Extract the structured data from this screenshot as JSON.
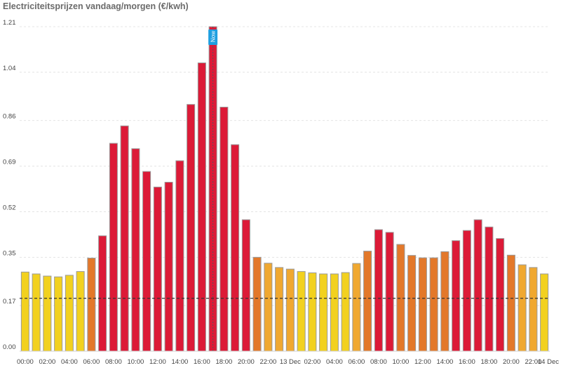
{
  "chart_data": {
    "type": "bar",
    "title": "Electriciteitsprijzen vandaag/morgen (€/kwh)",
    "xlabel": "",
    "ylabel": "",
    "ylim": [
      0,
      1.21
    ],
    "y_ticks": [
      "0.00",
      "0.17",
      "0.35",
      "0.52",
      "0.69",
      "0.86",
      "1.04",
      "1.21"
    ],
    "x_tick_labels": [
      "00:00",
      "02:00",
      "04:00",
      "06:00",
      "08:00",
      "10:00",
      "12:00",
      "14:00",
      "16:00",
      "18:00",
      "20:00",
      "22:00",
      "13 Dec",
      "02:00",
      "04:00",
      "06:00",
      "08:00",
      "10:00",
      "12:00",
      "14:00",
      "16:00",
      "18:00",
      "20:00",
      "22:00",
      "14 Dec"
    ],
    "values": [
      0.295,
      0.288,
      0.28,
      0.277,
      0.283,
      0.297,
      0.347,
      0.43,
      0.775,
      0.84,
      0.755,
      0.67,
      0.612,
      0.63,
      0.71,
      0.92,
      1.075,
      1.21,
      0.91,
      0.77,
      0.49,
      0.35,
      0.328,
      0.312,
      0.306,
      0.297,
      0.292,
      0.288,
      0.288,
      0.293,
      0.327,
      0.373,
      0.453,
      0.443,
      0.398,
      0.357,
      0.348,
      0.348,
      0.371,
      0.412,
      0.45,
      0.49,
      0.463,
      0.42,
      0.358,
      0.322,
      0.312,
      0.288
    ],
    "threshold": 0.197,
    "now_index": 17,
    "now_label": "Now",
    "colors": {
      "low": "#f2d11f",
      "mid": "#f0a830",
      "high": "#e3782a",
      "peak": "#dc1a37",
      "now_marker": "#1e9fe0",
      "threshold_line": "#333333",
      "grid": "#e4e4e4"
    },
    "grid": true,
    "legend": "none"
  }
}
